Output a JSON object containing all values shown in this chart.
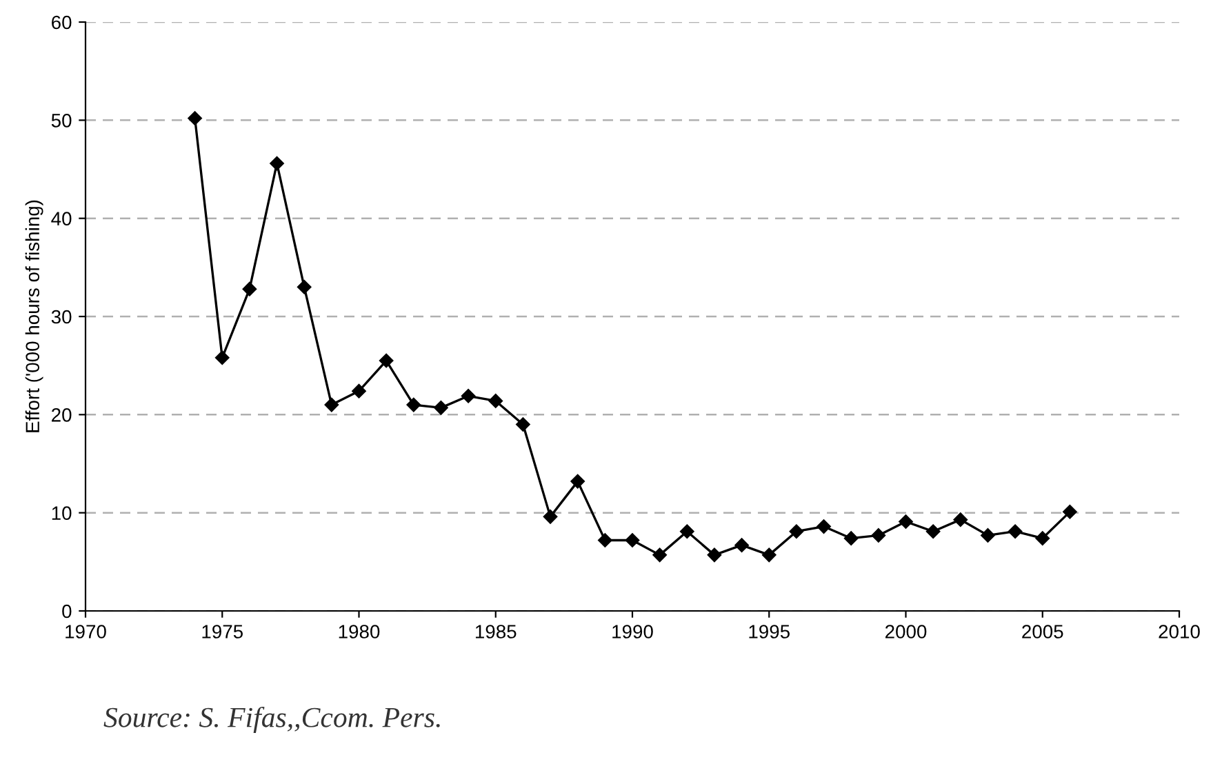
{
  "chart_data": {
    "type": "line",
    "ylabel": "Effort ('000 hours of fishing)",
    "annotations": [
      "Source: S. Fifas,,Ccom. Pers."
    ],
    "x": [
      1974,
      1975,
      1976,
      1977,
      1978,
      1979,
      1980,
      1981,
      1982,
      1983,
      1984,
      1985,
      1986,
      1987,
      1988,
      1989,
      1990,
      1991,
      1992,
      1993,
      1994,
      1995,
      1996,
      1997,
      1998,
      1999,
      2000,
      2001,
      2002,
      2003,
      2004,
      2005,
      2006
    ],
    "series": [
      {
        "color": "#000000",
        "values": [
          50.2,
          25.8,
          32.8,
          45.6,
          33,
          21,
          22.4,
          25.5,
          21,
          20.7,
          21.9,
          21.4,
          19,
          9.6,
          13.2,
          7.2,
          7.2,
          5.7,
          8.1,
          5.7,
          6.7,
          5.7,
          8.1,
          8.6,
          7.4,
          7.7,
          9.1,
          8.1,
          9.3,
          7.7,
          8.1,
          7.4,
          10.1
        ]
      }
    ],
    "xlim": [
      1970,
      2010
    ],
    "xticks": [
      1970,
      1975,
      1980,
      1985,
      1990,
      1995,
      2000,
      2005,
      2010
    ],
    "ylim": [
      0,
      60
    ],
    "yticks": [
      0,
      10,
      20,
      30,
      40,
      50,
      60
    ],
    "grid": "y",
    "marker": "diamond",
    "line_style": "solid"
  }
}
